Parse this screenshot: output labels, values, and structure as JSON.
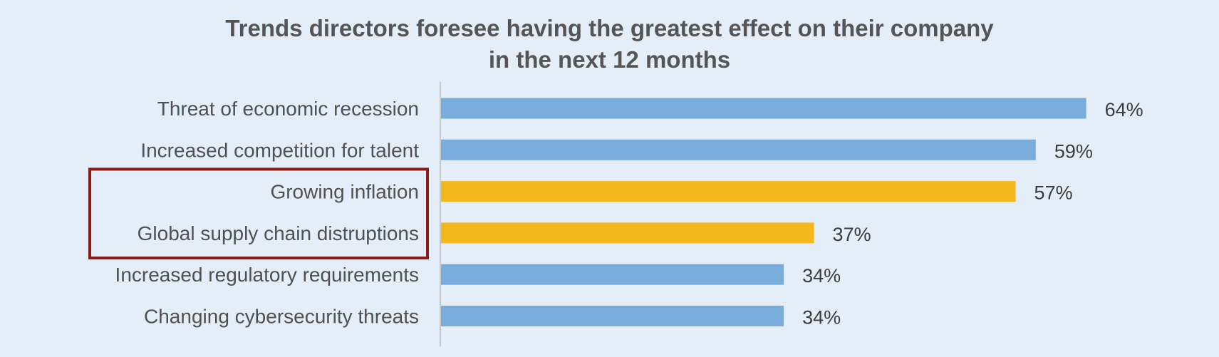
{
  "chart_data": {
    "type": "bar",
    "orientation": "horizontal",
    "title": "Trends directors foresee having the greatest effect on their company",
    "title_line2": "in the next 12 months",
    "categories": [
      "Threat of economic recession",
      "Increased competition for talent",
      "Growing inflation",
      "Global supply chain distruptions",
      "Increased regulatory requirements",
      "Changing cybersecurity threats"
    ],
    "values": [
      64,
      59,
      57,
      37,
      34,
      34
    ],
    "value_labels": [
      "64%",
      "59%",
      "57%",
      "37%",
      "34%",
      "34%"
    ],
    "value_unit": "%",
    "highlighted": [
      false,
      false,
      true,
      true,
      false,
      false
    ],
    "xlim": [
      0,
      100
    ],
    "grid": false,
    "legend": "none",
    "annotation": "highlight box around Growing inflation and Global supply chain distruptions",
    "colors": {
      "bar": "#7aacdb",
      "bar_highlight": "#f4b81c",
      "highlight_box": "#8b1a1a",
      "axis": "#c8c8c8",
      "background": "#e3eef9",
      "title": "#555555"
    }
  }
}
